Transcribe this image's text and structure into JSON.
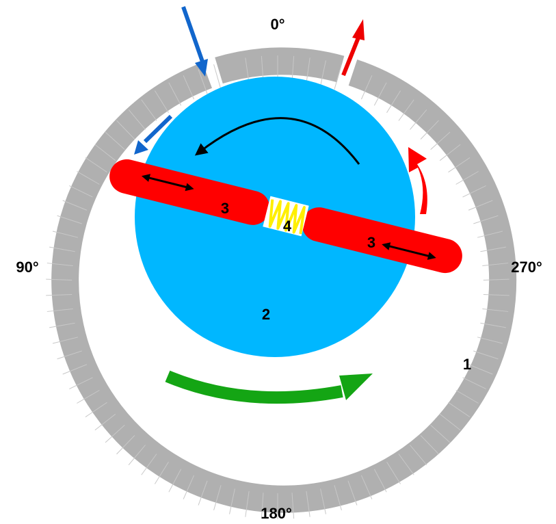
{
  "angles": {
    "top": "0°",
    "left": "90°",
    "bottom": "180°",
    "right": "270°"
  },
  "parts": {
    "housing": "1",
    "rotor": "2",
    "vane_left": "3",
    "vane_right": "3",
    "spring": "4"
  },
  "colors": {
    "housing": "#b0b0b0",
    "rotor": "#00b7ff",
    "vane": "#ff0000",
    "spring": "#ffef00",
    "intake_arrow": "#1166cc",
    "exhaust_arrow": "#ee0000",
    "rotation_arrow": "#14a514",
    "rotor_direction_arrow": "#000000"
  },
  "icons": {
    "intake": "inlet-arrow-icon",
    "exhaust": "outlet-arrow-icon",
    "rotation": "curved-arrow-icon",
    "vane_motion": "double-headed-arrow-icon"
  }
}
